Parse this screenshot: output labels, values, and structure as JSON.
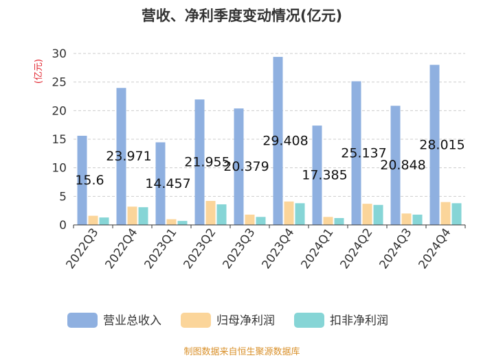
{
  "chart_data": {
    "type": "bar",
    "title": "营收、净利季度变动情况(亿元)",
    "ylabel": "(亿元)",
    "ylim": [
      0,
      30
    ],
    "yticks": [
      0,
      5,
      10,
      15,
      20,
      25,
      30
    ],
    "grid": true,
    "legend_position": "bottom",
    "categories": [
      "2022Q3",
      "2022Q4",
      "2023Q1",
      "2023Q2",
      "2023Q3",
      "2023Q4",
      "2024Q1",
      "2024Q2",
      "2024Q3",
      "2024Q4"
    ],
    "series": [
      {
        "name": "营业总收入",
        "color": "#8fb0e0",
        "labeled": true,
        "values": [
          15.6,
          23.971,
          14.457,
          21.955,
          20.379,
          29.408,
          17.385,
          25.137,
          20.848,
          28.015
        ]
      },
      {
        "name": "归母净利润",
        "color": "#fbd59a",
        "labeled": false,
        "values": [
          1.6,
          3.2,
          1.0,
          4.2,
          1.8,
          4.1,
          1.4,
          3.7,
          2.0,
          4.0
        ]
      },
      {
        "name": "扣非净利润",
        "color": "#86d5d6",
        "labeled": false,
        "values": [
          1.3,
          3.1,
          0.7,
          3.6,
          1.4,
          3.8,
          1.2,
          3.5,
          1.8,
          3.8
        ]
      }
    ],
    "data_labels": [
      "15.6",
      "23.971",
      "14.457",
      "21.955",
      "20.379",
      "29.408",
      "17.385",
      "25.137",
      "20.848",
      "28.015"
    ]
  },
  "source": "制图数据来自恒生聚源数据库"
}
